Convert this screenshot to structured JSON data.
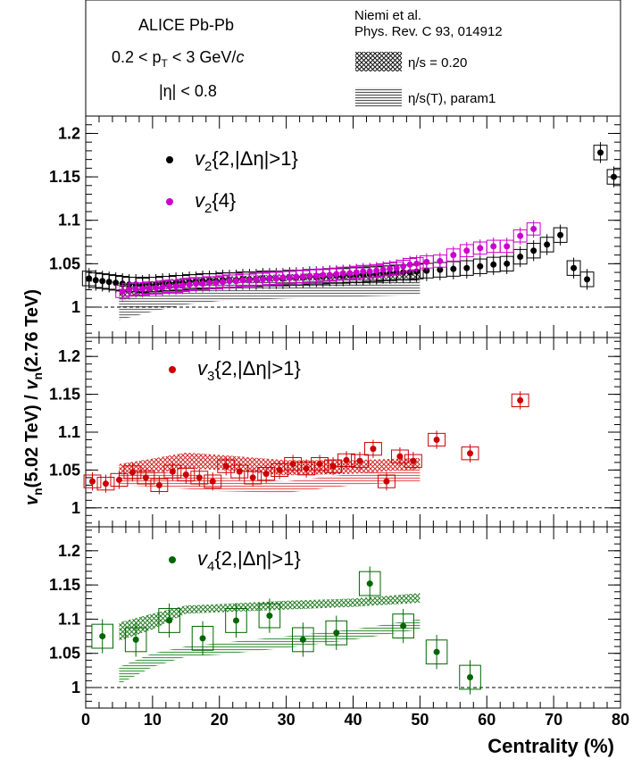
{
  "header": {
    "line1": "ALICE Pb-Pb",
    "line2": "0.2 < p",
    "line2_sub": "T",
    "line2_rest": " < 3 GeV/",
    "line2_c": "c",
    "line3": "|η| < 0.8",
    "model_line1": "Niemi et al.",
    "model_line2": "Phys. Rev. C 93, 014912",
    "model_legend1": "η/s = 0.20",
    "model_legend2": "η/s(T), param1"
  },
  "axes": {
    "ylabel_main": "v",
    "ylabel_sub": "n",
    "ylabel_rest1": "(5.02 TeV) / ",
    "ylabel_v": "v",
    "ylabel_sub2": "n",
    "ylabel_rest2": "(2.76 TeV)",
    "xlabel": "Centrality (%)",
    "xticks": [
      "0",
      "10",
      "20",
      "30",
      "40",
      "50",
      "60",
      "70",
      "80"
    ],
    "xlim": [
      0,
      80
    ]
  },
  "colors": {
    "v2_2": "#000000",
    "v2_4": "#cc00cc",
    "v3": "#cc0000",
    "v4": "#006600",
    "model_eta020": "#222222",
    "model_param1": "#555555"
  },
  "chart_data": [
    {
      "type": "scatter",
      "panel": "top",
      "ylim": [
        0.965,
        1.22
      ],
      "yticks": [
        "1",
        "1.05",
        "1.1",
        "1.15",
        "1.2"
      ],
      "legend": [
        {
          "v": "v",
          "sub": "2",
          "rest": "{2,|Δη|>1}"
        },
        {
          "v": "v",
          "sub": "2",
          "rest": "{4}"
        }
      ],
      "series": [
        {
          "x": [
            0.5,
            1.5,
            2.5,
            3.5,
            4.5,
            5.5,
            6.5,
            7.5,
            8.5,
            9.5,
            10.5,
            11.5,
            12.5,
            13.5,
            14.5,
            15.5,
            16.5,
            17.5,
            18.5,
            19.5,
            20.5,
            21.5,
            22.5,
            23.5,
            24.5,
            25.5,
            26.5,
            27.5,
            28.5,
            29.5,
            30.5,
            31.5,
            32.5,
            33.5,
            34.5,
            35.5,
            36.5,
            37.5,
            38.5,
            39.5,
            40.5,
            41.5,
            42.5,
            43.5,
            44.5,
            45.5,
            46.5,
            47.5,
            48.5,
            49.5,
            51,
            53,
            55,
            57,
            59,
            61,
            63,
            65,
            67,
            69,
            71,
            73,
            75,
            77,
            79
          ],
          "y": [
            1.033,
            1.031,
            1.03,
            1.029,
            1.028,
            1.027,
            1.026,
            1.026,
            1.025,
            1.026,
            1.026,
            1.027,
            1.027,
            1.028,
            1.028,
            1.029,
            1.029,
            1.03,
            1.03,
            1.03,
            1.031,
            1.031,
            1.031,
            1.032,
            1.032,
            1.032,
            1.033,
            1.033,
            1.033,
            1.033,
            1.034,
            1.034,
            1.034,
            1.035,
            1.035,
            1.035,
            1.036,
            1.036,
            1.036,
            1.037,
            1.037,
            1.037,
            1.038,
            1.038,
            1.039,
            1.039,
            1.04,
            1.04,
            1.04,
            1.041,
            1.042,
            1.043,
            1.044,
            1.045,
            1.047,
            1.049,
            1.05,
            1.058,
            1.065,
            1.072,
            1.083,
            1.045,
            1.032,
            1.178,
            1.15
          ],
          "err": 0.012
        },
        {
          "x": [
            5.5,
            6.5,
            7.5,
            8.5,
            9.5,
            10.5,
            11.5,
            12.5,
            13.5,
            14.5,
            15.5,
            16.5,
            17.5,
            18.5,
            19.5,
            20.5,
            21.5,
            22.5,
            23.5,
            24.5,
            25.5,
            26.5,
            27.5,
            28.5,
            29.5,
            30.5,
            31.5,
            32.5,
            33.5,
            34.5,
            35.5,
            36.5,
            37.5,
            38.5,
            39.5,
            40.5,
            41.5,
            42.5,
            43.5,
            44.5,
            45.5,
            46.5,
            47.5,
            48.5,
            49.5,
            51,
            53,
            55,
            57,
            59,
            61,
            63,
            65,
            67
          ],
          "y": [
            1.018,
            1.02,
            1.021,
            1.021,
            1.022,
            1.022,
            1.023,
            1.024,
            1.024,
            1.025,
            1.026,
            1.027,
            1.027,
            1.028,
            1.028,
            1.029,
            1.03,
            1.03,
            1.031,
            1.031,
            1.032,
            1.032,
            1.033,
            1.033,
            1.034,
            1.034,
            1.035,
            1.035,
            1.036,
            1.036,
            1.037,
            1.037,
            1.038,
            1.039,
            1.039,
            1.04,
            1.041,
            1.041,
            1.042,
            1.043,
            1.044,
            1.045,
            1.047,
            1.049,
            1.05,
            1.052,
            1.053,
            1.06,
            1.065,
            1.068,
            1.07,
            1.07,
            1.082,
            1.09
          ],
          "err": 0.01
        }
      ]
    },
    {
      "type": "scatter",
      "panel": "middle",
      "ylim": [
        0.975,
        1.225
      ],
      "yticks": [
        "1",
        "1.05",
        "1.1",
        "1.15",
        "1.2"
      ],
      "legend": [
        {
          "v": "v",
          "sub": "3",
          "rest": "{2,|Δη|>1}"
        }
      ],
      "series": [
        {
          "x": [
            1,
            3,
            5,
            7,
            9,
            11,
            13,
            15,
            17,
            19,
            21,
            23,
            25,
            27,
            29,
            31,
            33,
            35,
            37,
            39,
            41,
            43,
            45,
            47,
            49,
            52.5,
            57.5,
            65
          ],
          "y": [
            1.035,
            1.032,
            1.037,
            1.047,
            1.04,
            1.03,
            1.048,
            1.044,
            1.04,
            1.035,
            1.055,
            1.048,
            1.04,
            1.045,
            1.05,
            1.058,
            1.052,
            1.058,
            1.055,
            1.063,
            1.062,
            1.078,
            1.035,
            1.068,
            1.062,
            1.09,
            1.072,
            1.142
          ],
          "err": 0.012
        }
      ]
    },
    {
      "type": "scatter",
      "panel": "bottom",
      "ylim": [
        0.97,
        1.235
      ],
      "yticks": [
        "1",
        "1.05",
        "1.1",
        "1.15",
        "1.2"
      ],
      "legend": [
        {
          "v": "v",
          "sub": "4",
          "rest": "{2,|Δη|>1}"
        }
      ],
      "series": [
        {
          "x": [
            2.5,
            7.5,
            12.5,
            17.5,
            22.5,
            27.5,
            32.5,
            37.5,
            42.5,
            47.5,
            52.5,
            57.5
          ],
          "y": [
            1.075,
            1.07,
            1.098,
            1.072,
            1.098,
            1.105,
            1.07,
            1.08,
            1.152,
            1.09,
            1.052,
            1.015
          ],
          "err": 0.025
        }
      ]
    }
  ]
}
